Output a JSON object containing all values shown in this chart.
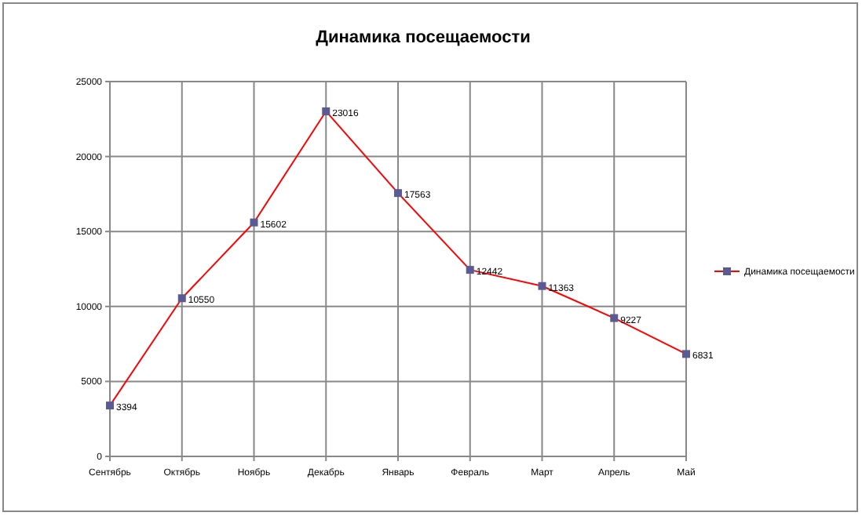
{
  "chart_data": {
    "type": "line",
    "title": "Динамика посещаемости",
    "categories": [
      "Сентябрь",
      "Октябрь",
      "Ноябрь",
      "Декабрь",
      "Январь",
      "Февраль",
      "Март",
      "Апрель",
      "Май"
    ],
    "series": [
      {
        "name": "Динамика посещаемости",
        "color": "#ff0000",
        "values": [
          3394,
          10550,
          15602,
          23016,
          17563,
          12442,
          11363,
          9227,
          6831
        ]
      }
    ],
    "ylim": [
      0,
      25000
    ],
    "yticks": [
      0,
      5000,
      10000,
      15000,
      20000,
      25000
    ],
    "grid": true,
    "legend": "right",
    "marker": "square",
    "data_labels": true
  }
}
